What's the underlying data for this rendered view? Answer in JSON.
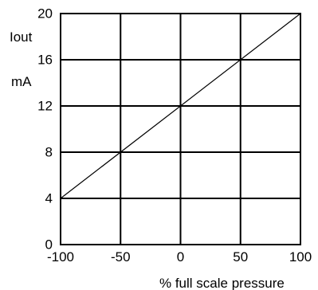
{
  "chart_data": {
    "type": "line",
    "xlabel": "% full scale pressure",
    "ylabel": "Iout",
    "yunit": "mA",
    "xlim": [
      -100,
      100
    ],
    "ylim": [
      0,
      20
    ],
    "xticks": [
      -100,
      -50,
      0,
      50,
      100
    ],
    "yticks": [
      0,
      4,
      8,
      12,
      16,
      20
    ],
    "grid": true,
    "legend": "none",
    "series": [
      {
        "x": [
          -100,
          100
        ],
        "y": [
          4,
          20
        ]
      }
    ]
  },
  "colors": {
    "line": "#000000",
    "grid": "#000000",
    "background": "#ffffff"
  }
}
